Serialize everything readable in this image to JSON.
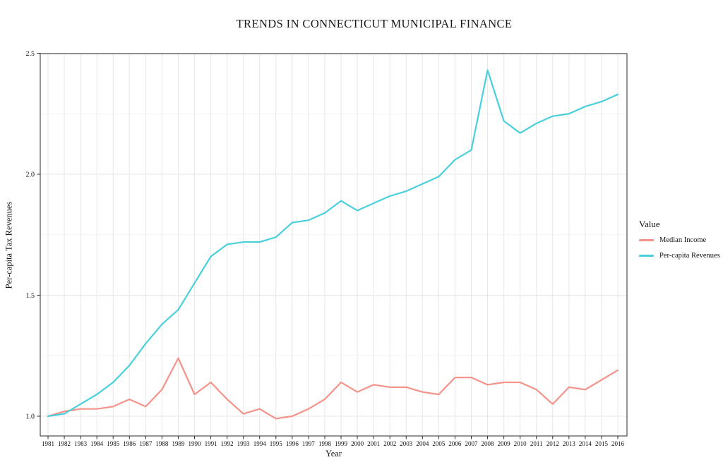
{
  "page": {
    "background": "#ffffff"
  },
  "chart_data": {
    "type": "line",
    "title": "TRENDS IN CONNECTICUT MUNICIPAL FINANCE",
    "xlabel": "Year",
    "ylabel": "Per-capita Tax Revenues",
    "legend_title": "Value",
    "legend_position": "right",
    "grid": true,
    "x": [
      1981,
      1982,
      1983,
      1984,
      1985,
      1986,
      1987,
      1988,
      1989,
      1990,
      1991,
      1992,
      1993,
      1994,
      1995,
      1996,
      1997,
      1998,
      1999,
      2000,
      2001,
      2002,
      2003,
      2004,
      2005,
      2006,
      2007,
      2008,
      2009,
      2010,
      2011,
      2012,
      2013,
      2014,
      2015,
      2016
    ],
    "series": [
      {
        "name": "Median Income",
        "color": "#F5928A",
        "values": [
          1.0,
          1.02,
          1.03,
          1.03,
          1.04,
          1.07,
          1.04,
          1.11,
          1.24,
          1.09,
          1.14,
          1.07,
          1.01,
          1.03,
          0.99,
          1.0,
          1.03,
          1.07,
          1.14,
          1.1,
          1.13,
          1.12,
          1.12,
          1.1,
          1.09,
          1.16,
          1.16,
          1.13,
          1.14,
          1.14,
          1.11,
          1.05,
          1.12,
          1.11,
          1.15,
          1.19
        ]
      },
      {
        "name": "Per-capita Revenues",
        "color": "#4ACFDC",
        "values": [
          1.0,
          1.01,
          1.05,
          1.09,
          1.14,
          1.21,
          1.3,
          1.38,
          1.44,
          1.55,
          1.66,
          1.71,
          1.72,
          1.72,
          1.74,
          1.8,
          1.81,
          1.84,
          1.89,
          1.85,
          1.88,
          1.91,
          1.93,
          1.96,
          1.99,
          2.06,
          2.1,
          2.43,
          2.22,
          2.17,
          2.21,
          2.24,
          2.25,
          2.28,
          2.3,
          2.33
        ]
      }
    ],
    "ylim": [
      0.92,
      2.5
    ],
    "yticks": [
      1.0,
      1.5,
      2.0,
      2.5
    ],
    "ytick_labels": [
      "1.0",
      "1.5",
      "2.0",
      "2.5"
    ],
    "yminor": [
      1.25,
      1.75,
      2.25
    ],
    "colors": {
      "grid_major": "#E7E7E7",
      "grid_minor": "#F4F4F4",
      "panel_border": "#4D4D4D",
      "tick": "#333333",
      "text": "#111111"
    }
  }
}
